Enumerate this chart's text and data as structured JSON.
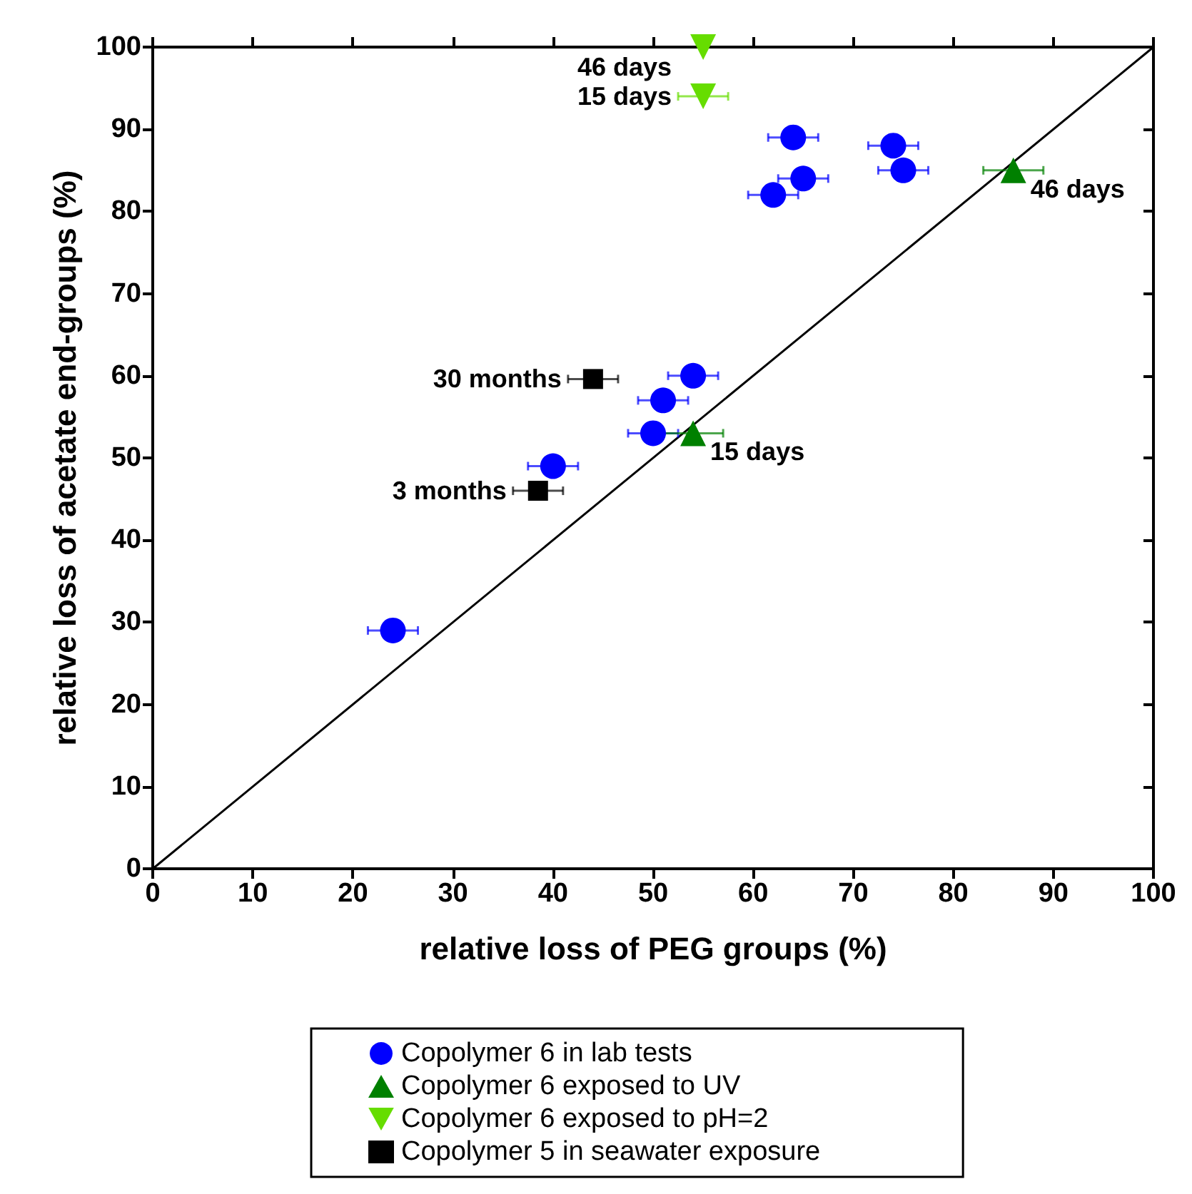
{
  "chart_data": {
    "type": "scatter",
    "xlabel": "relative loss of PEG groups (%)",
    "ylabel": "relative loss of acetate end-groups (%)",
    "xlim": [
      0,
      100
    ],
    "ylim": [
      0,
      100
    ],
    "xticks": [
      0,
      10,
      20,
      30,
      40,
      50,
      60,
      70,
      80,
      90,
      100
    ],
    "yticks": [
      0,
      10,
      20,
      30,
      40,
      50,
      60,
      70,
      80,
      90,
      100
    ],
    "grid": false,
    "legend": "bottom",
    "series": [
      {
        "name": "Copolymer 6 in lab tests",
        "color": "#0000ff",
        "marker": "circle",
        "x": [
          24,
          40,
          50,
          51,
          54,
          62,
          65,
          64,
          74,
          75
        ],
        "values": [
          29,
          49,
          53,
          57,
          60,
          82,
          84,
          89,
          88,
          85
        ],
        "xerrors": [
          2.5,
          2.5,
          2.5,
          2.5,
          2.5,
          2.5,
          2.5,
          2.5,
          2.5,
          2.5
        ]
      },
      {
        "name": "Copolymer 6 exposed to UV",
        "color": "#008000",
        "marker": "triangle",
        "x": [
          54,
          86
        ],
        "values": [
          53,
          85
        ],
        "xerrors": [
          3,
          3
        ]
      },
      {
        "name": "Copolymer 6 exposed to pH=2",
        "color": "#66dd00",
        "marker": "triangle-down",
        "x": [
          55,
          55
        ],
        "values": [
          94,
          100
        ],
        "xerrors": [
          2.5,
          null
        ]
      },
      {
        "name": "Copolymer 5 in seawater exposure",
        "color": "#000000",
        "marker": "square",
        "x": [
          38.5,
          44
        ],
        "values": [
          46,
          59.6
        ],
        "xerrors": [
          2.5,
          2.5
        ]
      },
      {
        "type": "line",
        "color": "#000000",
        "marker": "none",
        "x": [
          0,
          100
        ],
        "values": [
          0,
          100
        ]
      }
    ],
    "annotations": [
      {
        "text": "46 days",
        "x": 55,
        "y": 100
      },
      {
        "text": "15 days",
        "x": 55,
        "y": 94
      },
      {
        "text": "46 days",
        "x": 86,
        "y": 85
      },
      {
        "text": "15 days",
        "x": 54,
        "y": 53
      },
      {
        "text": "30 months",
        "x": 44,
        "y": 59.6
      },
      {
        "text": "3 months",
        "x": 38.5,
        "y": 46
      }
    ]
  }
}
